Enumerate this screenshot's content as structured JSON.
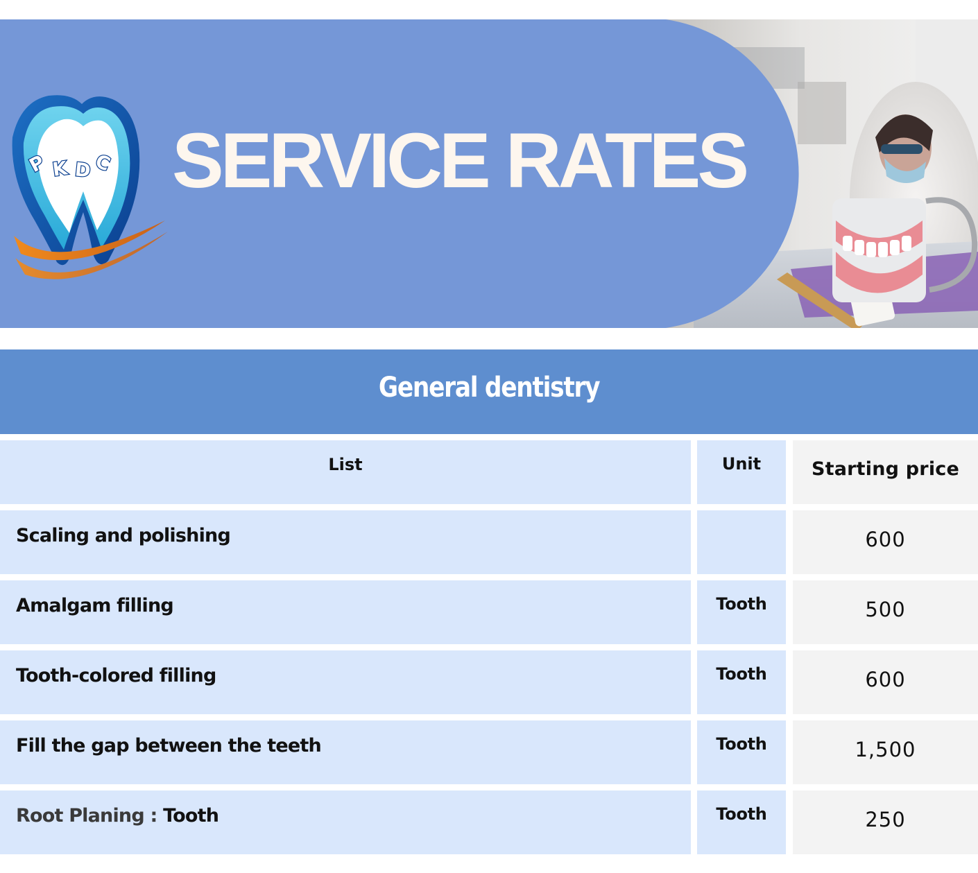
{
  "header": {
    "title": "SERVICE RATES",
    "logo_text": "PKDC"
  },
  "section": {
    "title": "General dentistry"
  },
  "table": {
    "columns": {
      "list": "List",
      "unit": "Unit",
      "price": "Starting price"
    },
    "rows": [
      {
        "item": "Scaling and polishing",
        "unit": "",
        "price": "600"
      },
      {
        "item": "Amalgam filling",
        "unit": "Tooth",
        "price": "500"
      },
      {
        "item": "Tooth-colored filling",
        "unit": "Tooth",
        "price": "600"
      },
      {
        "item": "Fill the gap between the teeth",
        "unit": "Tooth",
        "price": "1,500"
      },
      {
        "item_prefix": "Root Planing : ",
        "item_suffix": "Tooth",
        "unit": "Tooth",
        "price": "250"
      }
    ]
  },
  "colors": {
    "banner_blue": "#7597d7",
    "section_blue": "#5e8ecf",
    "row_blue": "#d9e7fc",
    "price_grey": "#f3f3f3",
    "title_cream": "#fdf6ee"
  },
  "icons": {
    "logo": "tooth-logo-icon",
    "photo": "dental-model-photo"
  }
}
